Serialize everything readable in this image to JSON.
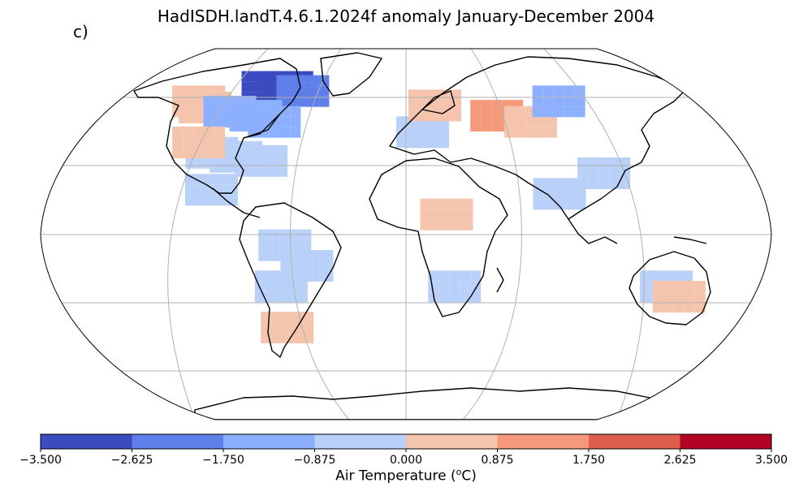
{
  "title": "HadISDH.landT.4.6.1.2024f anomaly January-December 2004",
  "panel_label": "c)",
  "colorbar": {
    "label_main": "Air Temperature (",
    "label_sup": "o",
    "label_end": "C)",
    "ticks": [
      "−3.500",
      "−2.625",
      "−1.750",
      "−0.875",
      "0.000",
      "0.875",
      "1.750",
      "2.625",
      "3.500"
    ],
    "colors": [
      "#3a4cc0",
      "#5f7fe9",
      "#8db0fe",
      "#b9d0f9",
      "#f5c4ad",
      "#f49a7b",
      "#dd5f4b",
      "#b40426"
    ]
  },
  "map": {
    "projection": "Robinson",
    "gridlines": true,
    "bin_edges": [
      -3.5,
      -2.625,
      -1.75,
      -0.875,
      0.0,
      0.875,
      1.75,
      2.625,
      3.5
    ],
    "cells": [
      {
        "region": "north-america-arctic",
        "lon": -110,
        "lat": 72,
        "value": -3.0
      },
      {
        "region": "north-america-arctic",
        "lon": -95,
        "lat": 72,
        "value": -3.0
      },
      {
        "region": "north-america-arctic",
        "lon": -80,
        "lat": 70,
        "value": -2.2
      },
      {
        "region": "alaska",
        "lon": -150,
        "lat": 65,
        "value": 0.5
      },
      {
        "region": "alaska",
        "lon": -140,
        "lat": 62,
        "value": 0.6
      },
      {
        "region": "canada",
        "lon": -120,
        "lat": 60,
        "value": -1.2
      },
      {
        "region": "canada",
        "lon": -100,
        "lat": 58,
        "value": -1.5
      },
      {
        "region": "canada",
        "lon": -85,
        "lat": 55,
        "value": -1.3
      },
      {
        "region": "usa",
        "lon": -110,
        "lat": 40,
        "value": -0.5
      },
      {
        "region": "usa",
        "lon": -95,
        "lat": 38,
        "value": -0.4
      },
      {
        "region": "usa",
        "lon": -80,
        "lat": 36,
        "value": -0.5
      },
      {
        "region": "usa-west",
        "lon": -122,
        "lat": 45,
        "value": 0.5
      },
      {
        "region": "mexico",
        "lon": -100,
        "lat": 22,
        "value": -0.4
      },
      {
        "region": "south-america",
        "lon": -60,
        "lat": -5,
        "value": -0.5
      },
      {
        "region": "south-america",
        "lon": -50,
        "lat": -15,
        "value": -0.4
      },
      {
        "region": "south-america",
        "lon": -65,
        "lat": -25,
        "value": -0.5
      },
      {
        "region": "patagonia",
        "lon": -70,
        "lat": -45,
        "value": 0.5
      },
      {
        "region": "europe",
        "lon": 10,
        "lat": 50,
        "value": -0.5
      },
      {
        "region": "scandinavia",
        "lon": 20,
        "lat": 63,
        "value": 0.6
      },
      {
        "region": "russia",
        "lon": 60,
        "lat": 58,
        "value": 1.0
      },
      {
        "region": "russia",
        "lon": 80,
        "lat": 55,
        "value": 0.8
      },
      {
        "region": "siberia",
        "lon": 110,
        "lat": 65,
        "value": -1.2
      },
      {
        "region": "china",
        "lon": 105,
        "lat": 30,
        "value": -0.4
      },
      {
        "region": "india",
        "lon": 78,
        "lat": 20,
        "value": -0.4
      },
      {
        "region": "africa",
        "lon": 20,
        "lat": 10,
        "value": 0.4
      },
      {
        "region": "southern-africa",
        "lon": 25,
        "lat": -25,
        "value": -0.4
      },
      {
        "region": "australia",
        "lon": 135,
        "lat": -25,
        "value": -0.4
      },
      {
        "region": "australia",
        "lon": 145,
        "lat": -30,
        "value": 0.4
      }
    ]
  }
}
